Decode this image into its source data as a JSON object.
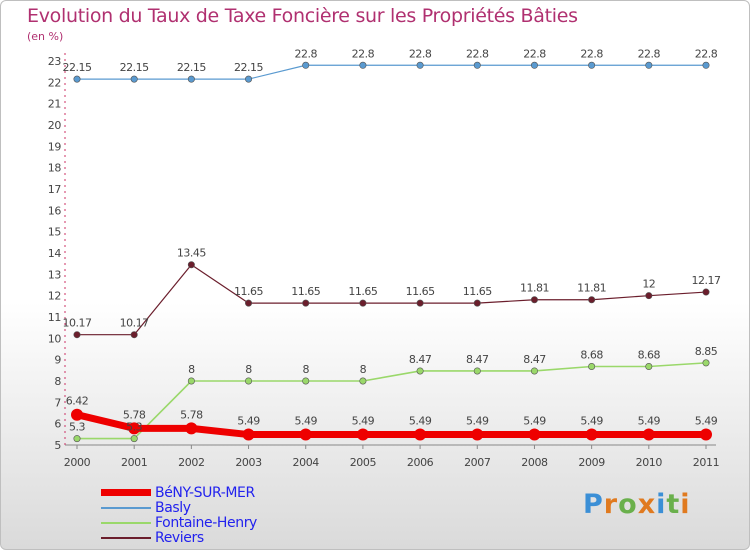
{
  "chart_data": {
    "type": "line",
    "title": "Evolution du Taux de Taxe Foncière sur les Propriétés Bâties",
    "subtitle": "(en %)",
    "x": [
      "2000",
      "2001",
      "2002",
      "2003",
      "2004",
      "2005",
      "2006",
      "2007",
      "2008",
      "2009",
      "2010",
      "2011"
    ],
    "y_ticks": [
      "5",
      "6",
      "7",
      "8",
      "9",
      "10",
      "11",
      "12",
      "13",
      "14",
      "15",
      "16",
      "17",
      "18",
      "19",
      "20",
      "21",
      "22",
      "23"
    ],
    "ylim": [
      5,
      23
    ],
    "series": [
      {
        "name": "Basly",
        "color": "#5a9ad0",
        "values": [
          22.15,
          22.15,
          22.15,
          22.15,
          22.8,
          22.8,
          22.8,
          22.8,
          22.8,
          22.8,
          22.8,
          22.8
        ],
        "labels": [
          "22.15",
          "22.15",
          "22.15",
          "22.15",
          "22.8",
          "22.8",
          "22.8",
          "22.8",
          "22.8",
          "22.8",
          "22.8",
          "22.8"
        ]
      },
      {
        "name": "Reviers",
        "color": "#6b1e2c",
        "values": [
          10.17,
          10.17,
          13.45,
          11.65,
          11.65,
          11.65,
          11.65,
          11.65,
          11.81,
          11.81,
          12,
          12.17
        ],
        "labels": [
          "10.17",
          "10.17",
          "13.45",
          "11.65",
          "11.65",
          "11.65",
          "11.65",
          "11.65",
          "11.81",
          "11.81",
          "12",
          "12.17"
        ]
      },
      {
        "name": "Fontaine-Henry",
        "color": "#9ad86a",
        "values": [
          5.3,
          5.3,
          8,
          8,
          8,
          8,
          8.47,
          8.47,
          8.47,
          8.68,
          8.68,
          8.85
        ],
        "labels": [
          "5.3",
          "5.3",
          "8",
          "8",
          "8",
          "8",
          "8.47",
          "8.47",
          "8.47",
          "8.68",
          "8.68",
          "8.85"
        ]
      },
      {
        "name": "BéNY-SUR-MER",
        "color": "#ee0000",
        "values": [
          6.42,
          5.78,
          5.78,
          5.49,
          5.49,
          5.49,
          5.49,
          5.49,
          5.49,
          5.49,
          5.49,
          5.49
        ],
        "labels": [
          "6.42",
          "5.78",
          "5.78",
          "5.49",
          "5.49",
          "5.49",
          "5.49",
          "5.49",
          "5.49",
          "5.49",
          "5.49",
          "5.49"
        ]
      }
    ],
    "legend": [
      "BéNY-SUR-MER",
      "Basly",
      "Fontaine-Henry",
      "Reviers"
    ]
  },
  "logo": {
    "letters": [
      "P",
      "r",
      "o",
      "x",
      "i",
      "t",
      "i"
    ]
  }
}
